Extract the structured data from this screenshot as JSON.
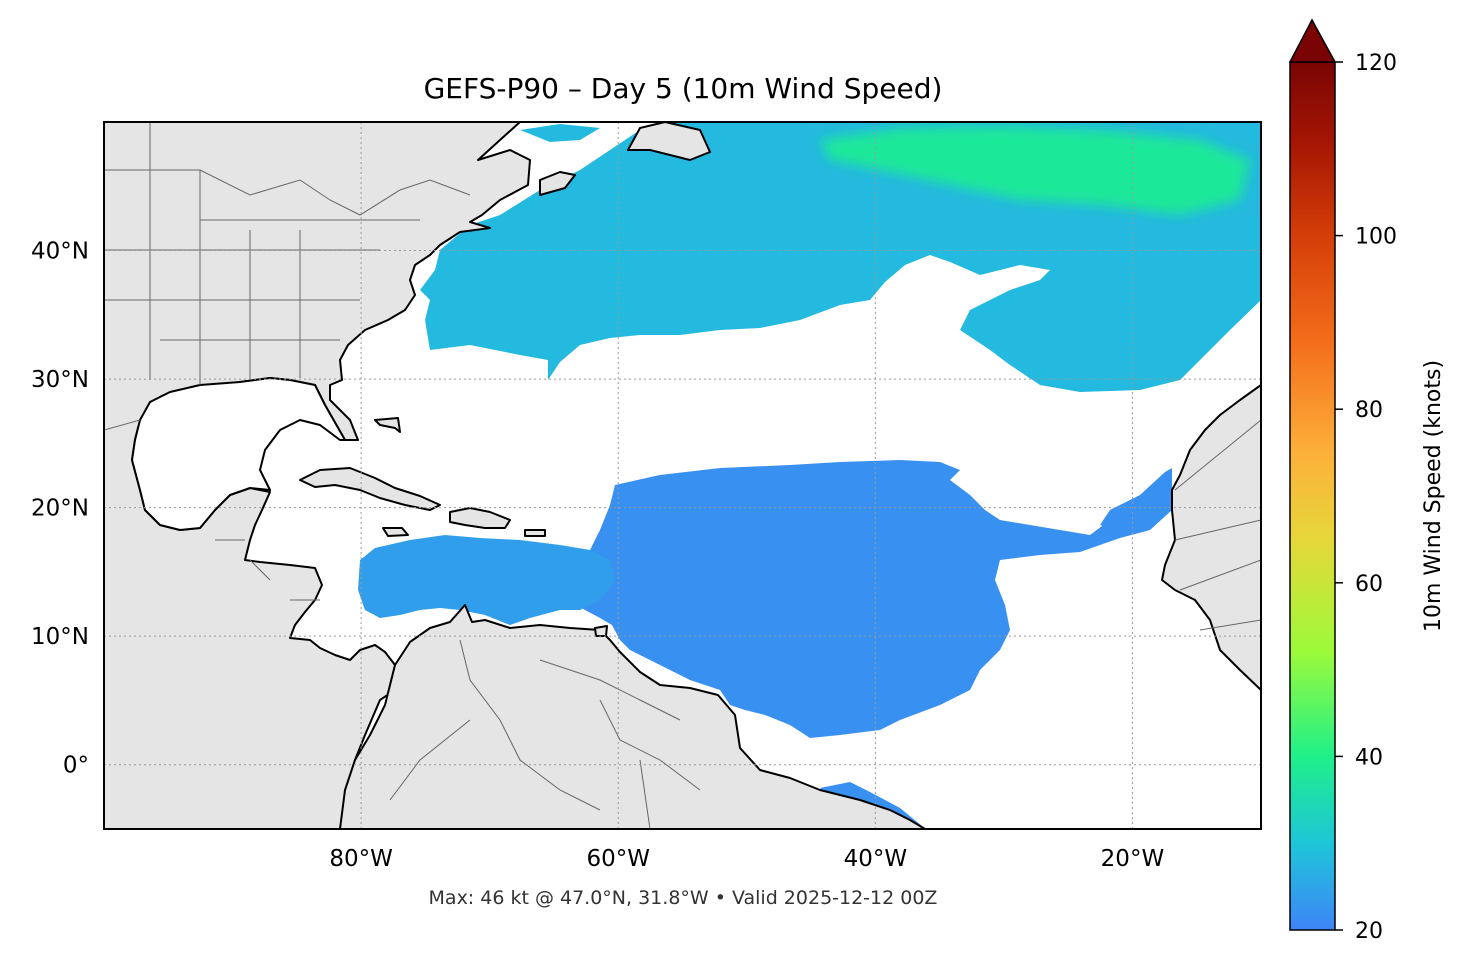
{
  "title": "GEFS-P90 – Day 5 (10m Wind Speed)",
  "footer": "Max: 46 kt @ 47.0°N, 31.8°W • Valid 2025-12-12 00Z",
  "map": {
    "extent": {
      "lon_min": -100,
      "lon_max": -10,
      "lat_min": -5,
      "lat_max": 50
    },
    "grid": true,
    "x_ticks": [
      {
        "lon": -80,
        "label": "80°W"
      },
      {
        "lon": -60,
        "label": "60°W"
      },
      {
        "lon": -40,
        "label": "40°W"
      },
      {
        "lon": -20,
        "label": "20°W"
      }
    ],
    "y_ticks": [
      {
        "lat": 40,
        "label": "40°N"
      },
      {
        "lat": 30,
        "label": "30°N"
      },
      {
        "lat": 20,
        "label": "20°N"
      },
      {
        "lat": 10,
        "label": "10°N"
      },
      {
        "lat": 0,
        "label": "0°"
      }
    ],
    "land_color": "#e5e5e5",
    "coast_color": "#000000",
    "border_color": "#666666"
  },
  "colorbar": {
    "label": "10m Wind Speed (knots)",
    "min": 20,
    "max": 120,
    "extend": "max",
    "ticks": [
      {
        "value": 20,
        "label": "20"
      },
      {
        "value": 40,
        "label": "40"
      },
      {
        "value": 60,
        "label": "60"
      },
      {
        "value": 80,
        "label": "80"
      },
      {
        "value": 100,
        "label": "100"
      },
      {
        "value": 120,
        "label": "120"
      }
    ],
    "stops": [
      {
        "value": 20,
        "color": "#3e84f7"
      },
      {
        "value": 30,
        "color": "#1ec6d8"
      },
      {
        "value": 40,
        "color": "#1ff08a"
      },
      {
        "value": 52,
        "color": "#9cfa3a"
      },
      {
        "value": 65,
        "color": "#e6d73a"
      },
      {
        "value": 75,
        "color": "#fdb03a"
      },
      {
        "value": 88,
        "color": "#f36c1a"
      },
      {
        "value": 100,
        "color": "#d43e08"
      },
      {
        "value": 110,
        "color": "#a81804"
      },
      {
        "value": 120,
        "color": "#7a0403"
      }
    ],
    "extend_color": "#7a0403"
  },
  "wind_fields": [
    {
      "name": "north-atlantic-band",
      "speed_kt": 28
    },
    {
      "name": "north-atlantic-core",
      "speed_kt": 38
    },
    {
      "name": "trade-wind-region",
      "speed_kt": 22
    },
    {
      "name": "caribbean-jet",
      "speed_kt": 24
    },
    {
      "name": "african-coast-band",
      "speed_kt": 22
    }
  ]
}
